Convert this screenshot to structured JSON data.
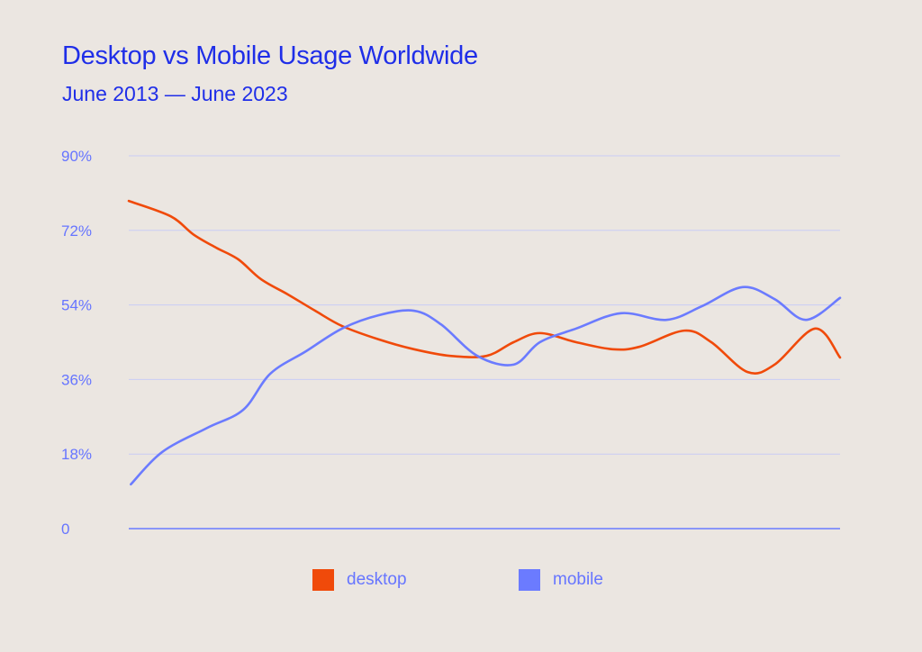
{
  "chart_data": {
    "type": "line",
    "title": "Desktop vs Mobile Usage Worldwide",
    "subtitle": "June 2013 — June 2023",
    "xlabel": "",
    "ylabel": "",
    "xlim": [
      2013.5,
      2023.5
    ],
    "ylim": [
      0,
      90
    ],
    "yticks": [
      0,
      18,
      36,
      54,
      72,
      90
    ],
    "ytick_labels": [
      "0",
      "18%",
      "36%",
      "54%",
      "72%",
      "90%"
    ],
    "grid": true,
    "legend": "bottom",
    "series": [
      {
        "name": "desktop",
        "color": "#f04a0a",
        "x": [
          2013.5,
          2014.09,
          2014.41,
          2014.73,
          2015.04,
          2015.36,
          2015.74,
          2016.12,
          2016.5,
          2017.01,
          2017.51,
          2018.02,
          2018.53,
          2018.91,
          2019.28,
          2019.79,
          2020.3,
          2020.68,
          2021.31,
          2021.69,
          2022.2,
          2022.58,
          2023.15,
          2023.5
        ],
        "y": [
          79.1,
          75.4,
          71,
          67.8,
          65,
          60.2,
          56.5,
          52.6,
          48.9,
          45.7,
          43.3,
          41.7,
          41.7,
          45,
          47.2,
          45,
          43.3,
          43.9,
          47.8,
          45,
          37.8,
          39.6,
          48.3,
          41.3
        ]
      },
      {
        "name": "mobile",
        "color": "#6b7bff",
        "x": [
          2013.53,
          2013.97,
          2014.6,
          2015.11,
          2015.49,
          2015.99,
          2016.5,
          2017.01,
          2017.51,
          2017.89,
          2018.4,
          2018.91,
          2019.28,
          2019.79,
          2020.42,
          2021.06,
          2021.56,
          2022.13,
          2022.58,
          2023.02,
          2023.5
        ],
        "y": [
          10.7,
          18.5,
          24.3,
          28.7,
          37.4,
          42.8,
          48.3,
          51.5,
          52.6,
          49.3,
          41.7,
          39.6,
          45,
          48.3,
          52,
          50.4,
          53.7,
          58.3,
          55.4,
          50.4,
          55.7
        ]
      }
    ]
  }
}
